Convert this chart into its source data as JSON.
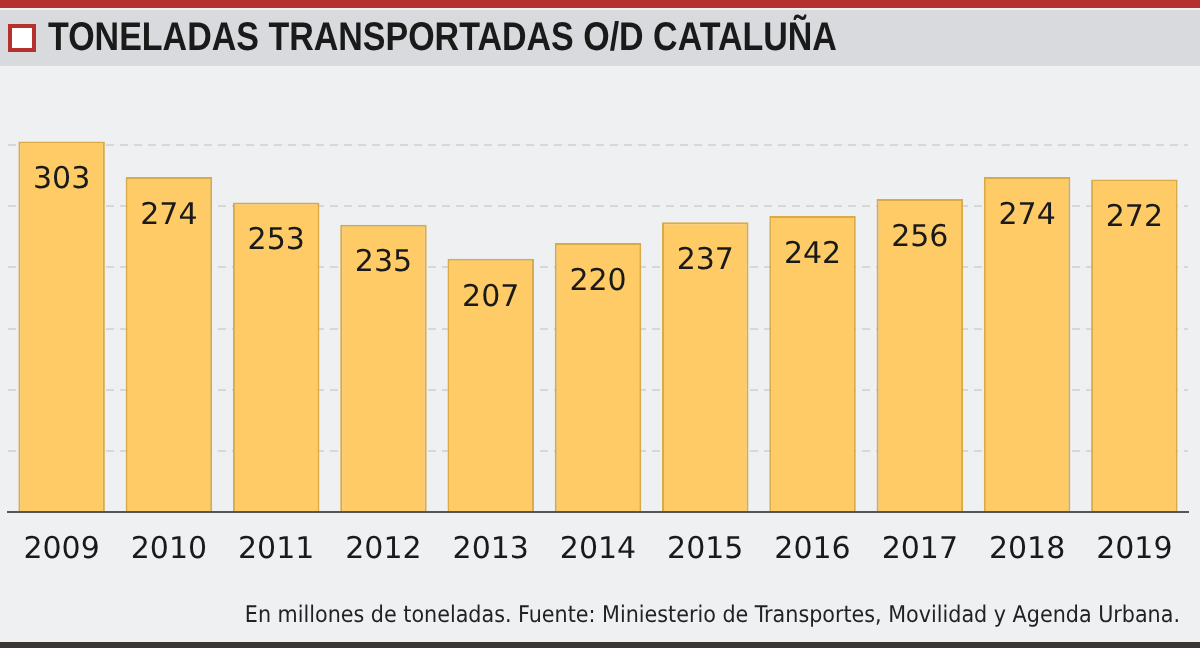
{
  "chart_data": {
    "type": "bar",
    "title": "TONELADAS TRANSPORTADAS O/D CATALUÑA",
    "categories": [
      "2009",
      "2010",
      "2011",
      "2012",
      "2013",
      "2014",
      "2015",
      "2016",
      "2017",
      "2018",
      "2019"
    ],
    "values": [
      303,
      274,
      253,
      235,
      207,
      220,
      237,
      242,
      256,
      274,
      272
    ],
    "color": "#fecb66",
    "data_labels": true,
    "yticks": [
      {
        "value": 0,
        "label": null
      },
      {
        "value": 50,
        "label": null
      },
      {
        "value": 100,
        "label": null
      },
      {
        "value": 150,
        "label": null
      },
      {
        "value": 200,
        "label": null
      },
      {
        "value": 250,
        "label": null
      },
      {
        "value": 300,
        "label": null
      }
    ],
    "grid": "y",
    "tick_labels": "x",
    "legend": false,
    "annotations": [
      "En millones de toneladas. Fuente: Miniesterio de Transportes, Movilidad y Agenda Urbana."
    ]
  }
}
